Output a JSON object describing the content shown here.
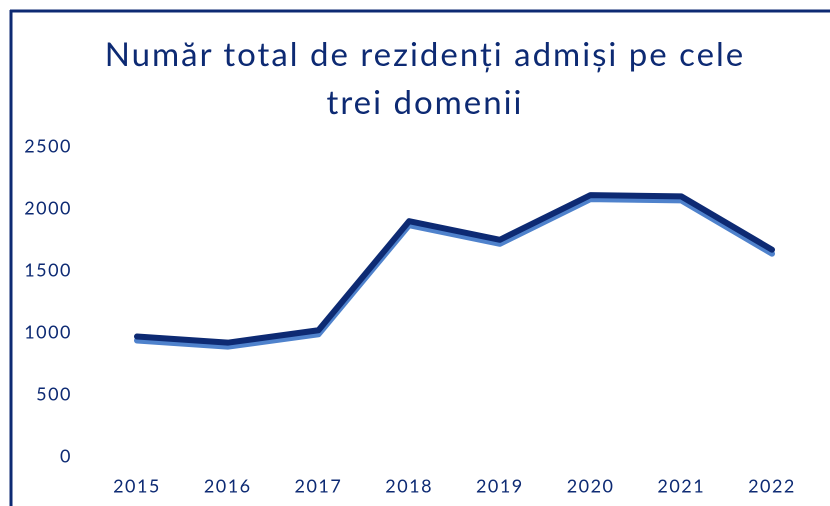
{
  "chart_data": {
    "type": "line",
    "title": "Număr total de rezidenți admiși pe cele trei domenii",
    "categories": [
      "2015",
      "2016",
      "2017",
      "2018",
      "2019",
      "2020",
      "2021",
      "2022"
    ],
    "series": [
      {
        "color": "#0d2a73",
        "values": [
          980,
          930,
          1030,
          1910,
          1760,
          2120,
          2110,
          1680
        ]
      }
    ],
    "ylim": [
      0,
      2500
    ],
    "yticks": [
      0,
      500,
      1000,
      1500,
      2000,
      2500
    ],
    "grid": false
  }
}
